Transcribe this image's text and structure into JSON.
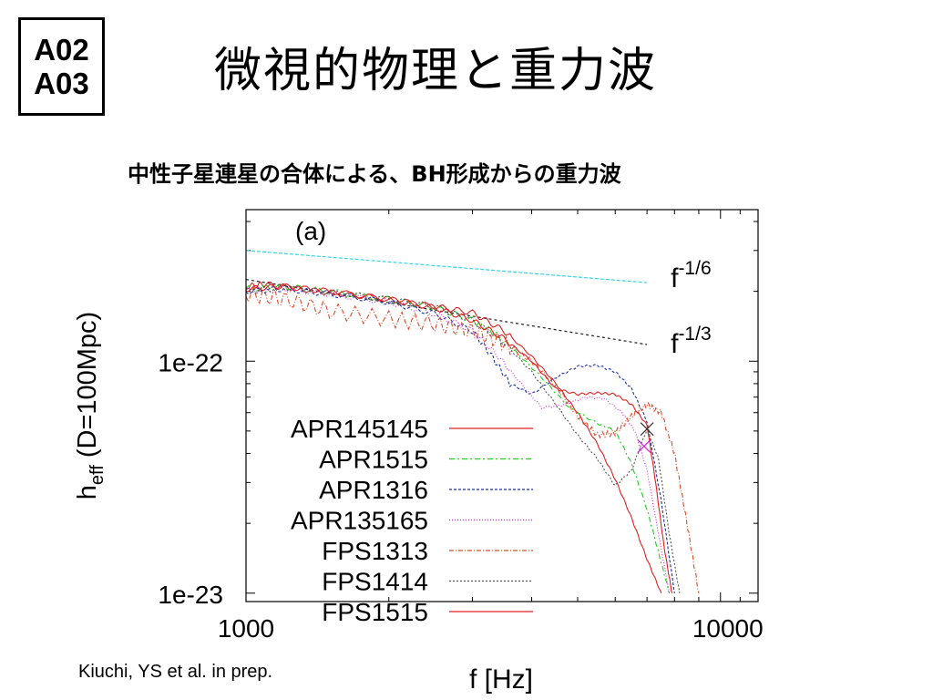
{
  "badge": {
    "line1": "A02",
    "line2": "A03"
  },
  "slide": {
    "title": "微視的物理と重力波",
    "subtitle": "中性子星連星の合体による、BH形成からの重力波",
    "credit": "Kiuchi, YS et al.  in prep."
  },
  "chart_data": {
    "type": "line",
    "panel_label": "(a)",
    "xlabel": "f [Hz]",
    "ylabel_main": "h",
    "ylabel_sub": "eff",
    "ylabel_rest": " (D=100Mpc)",
    "x_scale": "log",
    "y_scale": "log",
    "xlim": [
      1000,
      12000
    ],
    "ylim": [
      9.2e-24,
      4.5e-22
    ],
    "x_ticks": [
      {
        "value": 1000,
        "label": "1000"
      },
      {
        "value": 10000,
        "label": "10000"
      }
    ],
    "y_ticks": [
      {
        "value": 1e-22,
        "label": "1e-22"
      },
      {
        "value": 1e-23,
        "label": "1e-23"
      }
    ],
    "legend_position": "bottom-left",
    "reference_lines": [
      {
        "name": "f^-1/6",
        "base": "f",
        "exponent": "-1/6",
        "color": "#33d6e6",
        "dash": "4,2",
        "x": [
          1000,
          7000
        ],
        "y": [
          3e-22,
          2.18e-22
        ]
      },
      {
        "name": "f^-1/3",
        "base": "f",
        "exponent": "-1/3",
        "color": "#222222",
        "dash": "3,3",
        "x": [
          1000,
          7000
        ],
        "y": [
          2.25e-22,
          1.18e-22
        ]
      }
    ],
    "series": [
      {
        "name": "APR145145",
        "color": "#e02020",
        "dash": "none",
        "x": [
          1000,
          1100,
          1300,
          1600,
          2000,
          2500,
          3000,
          3500,
          4000,
          4500,
          5000,
          5500,
          6000,
          6500,
          7000,
          7500
        ],
        "y": [
          2.1e-22,
          2.15e-22,
          2.05e-22,
          1.95e-22,
          1.85e-22,
          1.72e-22,
          1.62e-22,
          1.35e-22,
          1.05e-22,
          8e-23,
          6e-23,
          4.4e-23,
          3.1e-23,
          2.1e-23,
          1.4e-23,
          1e-23
        ]
      },
      {
        "name": "APR1515",
        "color": "#22cc22",
        "dash": "6,3,2,3",
        "x": [
          1000,
          1200,
          1500,
          2000,
          2500,
          3000,
          3300,
          3700,
          4200,
          4800,
          5500,
          6000,
          6500,
          7000,
          7400,
          7800
        ],
        "y": [
          2.05e-22,
          2.1e-22,
          2e-22,
          1.85e-22,
          1.7e-22,
          1.5e-22,
          1.35e-22,
          1.1e-22,
          8.5e-23,
          6.3e-23,
          5.4e-23,
          5e-23,
          3.6e-23,
          2.3e-23,
          1.5e-23,
          1e-23
        ]
      },
      {
        "name": "APR1316",
        "color": "#1a2eaa",
        "dash": "3,2",
        "x": [
          1000,
          1200,
          1500,
          2000,
          2500,
          3000,
          3300,
          3600,
          4000,
          4500,
          5000,
          5500,
          6000,
          6500,
          7000,
          7500,
          8000
        ],
        "y": [
          2e-22,
          2.05e-22,
          1.95e-22,
          1.8e-22,
          1.6e-22,
          1.35e-22,
          1.05e-22,
          8e-23,
          7.2e-23,
          8.5e-23,
          9.5e-23,
          9.6e-23,
          9e-23,
          7.6e-23,
          5.5e-23,
          2.5e-23,
          1e-23
        ]
      },
      {
        "name": "APR135165",
        "color": "#e020e0",
        "dash": "1,2",
        "x": [
          1000,
          1200,
          1500,
          2000,
          2500,
          3000,
          3400,
          3800,
          4200,
          4700,
          5200,
          5700,
          6200,
          6600,
          7000,
          7400,
          7800
        ],
        "y": [
          2e-22,
          2.05e-22,
          1.95e-22,
          1.8e-22,
          1.6e-22,
          1.35e-22,
          1.05e-22,
          8e-23,
          6.3e-23,
          6.5e-23,
          7e-23,
          6.9e-23,
          6e-23,
          5e-23,
          3.4e-23,
          1.8e-23,
          1e-23
        ]
      },
      {
        "name": "FPS1313",
        "color": "#e04a2a",
        "dash": "5,2,1,2",
        "zigzag": true,
        "x": [
          1000,
          1200,
          1500,
          2000,
          2500,
          3000,
          3500,
          4000,
          4500,
          5000,
          5500,
          6000,
          6500,
          7000,
          7500,
          8000,
          8500,
          9000
        ],
        "y": [
          1.95e-22,
          1.85e-22,
          1.65e-22,
          1.52e-22,
          1.45e-22,
          1.35e-22,
          1.2e-22,
          1e-22,
          7.8e-23,
          5.8e-23,
          4.8e-23,
          4.9e-23,
          5.8e-23,
          6.5e-23,
          6e-23,
          4e-23,
          2e-23,
          1e-23
        ]
      },
      {
        "name": "FPS1414",
        "color": "#555555",
        "dash": "2,2",
        "x": [
          1000,
          1200,
          1500,
          2000,
          2500,
          3000,
          3500,
          4000,
          4500,
          5000,
          5500,
          6000,
          6500,
          7000,
          7400,
          7800,
          8200
        ],
        "y": [
          2e-22,
          2.08e-22,
          1.98e-22,
          1.85e-22,
          1.72e-22,
          1.5e-22,
          1.2e-22,
          9e-23,
          6.5e-23,
          4.8e-23,
          3.8e-23,
          2.9e-23,
          3.4e-23,
          5.1e-23,
          3.8e-23,
          1.8e-23,
          1e-23
        ]
      },
      {
        "name": "FPS1515",
        "color": "#e02020",
        "dash": "none",
        "x": [
          1000,
          1200,
          1500,
          2000,
          2500,
          3000,
          3500,
          4000,
          4500,
          5000,
          5500,
          6000,
          6500,
          7000,
          7300,
          7600,
          7900
        ],
        "y": [
          2.05e-22,
          2.1e-22,
          2e-22,
          1.85e-22,
          1.7e-22,
          1.5e-22,
          1.25e-22,
          1e-22,
          7.6e-23,
          7.2e-23,
          7.3e-23,
          7.2e-23,
          6.5e-23,
          5.3e-23,
          3e-23,
          1.6e-23,
          1e-23
        ]
      }
    ],
    "markers": [
      {
        "series": "FPS1414",
        "x": 7000,
        "y": 5.1e-23,
        "symbol": "x",
        "color": "#333333"
      },
      {
        "series": "APR135165",
        "x": 6900,
        "y": 4.3e-23,
        "symbol": "x",
        "color": "#e020e0"
      }
    ]
  }
}
